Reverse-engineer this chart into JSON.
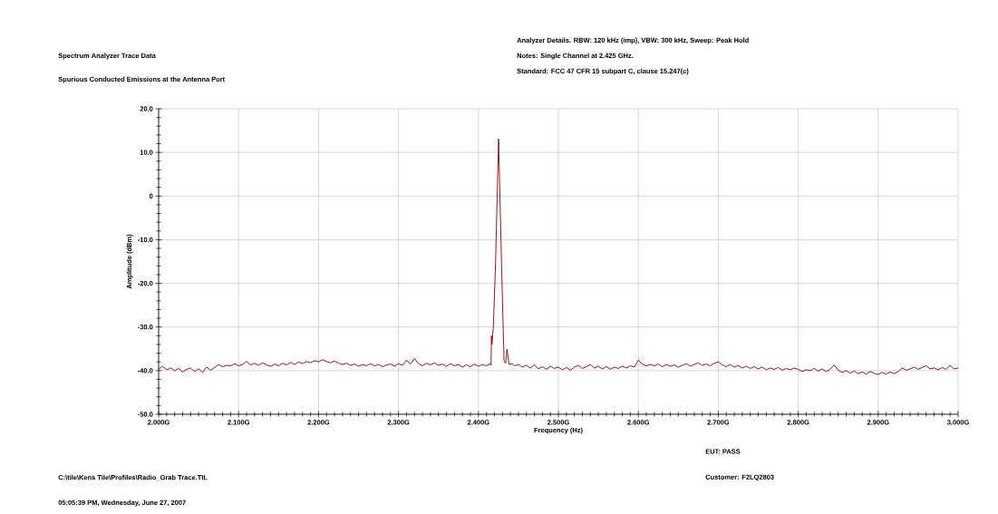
{
  "chart_data": {
    "type": "line",
    "subtitle": "Spectrum Analyzer Trace Data",
    "xlabel": "Frequency (Hz)",
    "ylabel": "Amplitude (dBm)",
    "annotations": [
      "Spurious Conducted Emissions at the Antenna Port",
      "Analyzer Details.  RBW: 120 kHz (imp), VBW: 300 kHz, Sweep: Peak Hold",
      "Notes:  Single Channel at 2.425 GHz.",
      "Standard: FCC 47 CFR 15 subpart C, clause 15.247(c)",
      "C:\\tile\\Kens Tile\\Profiles\\Radio_Grab Trace.TIL",
      "05:05:39 PM, Wednesday, June 27, 2007",
      "EUT: PASS",
      "Customer: F2LQ2803"
    ],
    "xlim": [
      2.0,
      3.0
    ],
    "xticks": [
      {
        "value": 2.0,
        "label": "2.000G"
      },
      {
        "value": 2.1,
        "label": "2.100G"
      },
      {
        "value": 2.2,
        "label": "2.200G"
      },
      {
        "value": 2.3,
        "label": "2.300G"
      },
      {
        "value": 2.4,
        "label": "2.400G"
      },
      {
        "value": 2.5,
        "label": "2.500G"
      },
      {
        "value": 2.6,
        "label": "2.600G"
      },
      {
        "value": 2.7,
        "label": "2.700G"
      },
      {
        "value": 2.8,
        "label": "2.800G"
      },
      {
        "value": 2.9,
        "label": "2.900G"
      },
      {
        "value": 3.0,
        "label": "3.000G"
      }
    ],
    "ylim": [
      -50,
      20
    ],
    "yticks": [
      {
        "value": -50,
        "label": "-50.0"
      },
      {
        "value": -40,
        "label": "-40.0"
      },
      {
        "value": -30,
        "label": "-30.0"
      },
      {
        "value": -20,
        "label": "-20.0"
      },
      {
        "value": -10,
        "label": "-10.0"
      },
      0,
      {
        "value": 10,
        "label": "10.0"
      },
      {
        "value": 20,
        "label": "20.0"
      }
    ],
    "grid": true,
    "marker": "none",
    "line_style": "solid",
    "series": [
      {
        "color": "#800000",
        "x": [
          2.0,
          2.005,
          2.01,
          2.015,
          2.02,
          2.025,
          2.03,
          2.035,
          2.04,
          2.045,
          2.05,
          2.055,
          2.06,
          2.065,
          2.07,
          2.075,
          2.08,
          2.085,
          2.09,
          2.095,
          2.1,
          2.105,
          2.11,
          2.115,
          2.12,
          2.125,
          2.13,
          2.135,
          2.14,
          2.145,
          2.15,
          2.155,
          2.16,
          2.165,
          2.17,
          2.175,
          2.18,
          2.185,
          2.19,
          2.195,
          2.2,
          2.205,
          2.21,
          2.215,
          2.22,
          2.225,
          2.23,
          2.235,
          2.24,
          2.245,
          2.25,
          2.255,
          2.26,
          2.265,
          2.27,
          2.275,
          2.28,
          2.285,
          2.29,
          2.295,
          2.3,
          2.305,
          2.31,
          2.315,
          2.32,
          2.325,
          2.33,
          2.335,
          2.34,
          2.345,
          2.35,
          2.355,
          2.36,
          2.365,
          2.37,
          2.375,
          2.38,
          2.385,
          2.39,
          2.395,
          2.4,
          2.405,
          2.41,
          2.415,
          2.4158,
          2.4163,
          2.4169,
          2.4187,
          2.4214,
          2.4252,
          2.4289,
          2.432,
          2.434,
          2.4357,
          2.4384,
          2.442,
          2.445,
          2.45,
          2.455,
          2.46,
          2.465,
          2.47,
          2.475,
          2.48,
          2.485,
          2.49,
          2.495,
          2.5,
          2.505,
          2.51,
          2.515,
          2.52,
          2.525,
          2.53,
          2.535,
          2.54,
          2.545,
          2.55,
          2.555,
          2.56,
          2.565,
          2.57,
          2.575,
          2.58,
          2.585,
          2.59,
          2.595,
          2.6,
          2.605,
          2.61,
          2.615,
          2.62,
          2.625,
          2.63,
          2.635,
          2.64,
          2.645,
          2.65,
          2.655,
          2.66,
          2.665,
          2.67,
          2.675,
          2.68,
          2.685,
          2.69,
          2.695,
          2.7,
          2.705,
          2.71,
          2.715,
          2.72,
          2.725,
          2.73,
          2.735,
          2.74,
          2.745,
          2.75,
          2.755,
          2.76,
          2.765,
          2.77,
          2.775,
          2.78,
          2.785,
          2.79,
          2.795,
          2.8,
          2.805,
          2.81,
          2.815,
          2.82,
          2.825,
          2.83,
          2.835,
          2.84,
          2.845,
          2.85,
          2.855,
          2.86,
          2.865,
          2.87,
          2.875,
          2.88,
          2.885,
          2.89,
          2.895,
          2.9,
          2.905,
          2.91,
          2.915,
          2.92,
          2.925,
          2.93,
          2.935,
          2.94,
          2.945,
          2.95,
          2.955,
          2.96,
          2.965,
          2.97,
          2.975,
          2.98,
          2.985,
          2.99,
          2.995,
          3.0
        ],
        "values": [
          -39.6,
          -39.0,
          -39.8,
          -39.4,
          -40.0,
          -39.5,
          -40.3,
          -39.7,
          -39.4,
          -40.2,
          -39.6,
          -40.4,
          -39.2,
          -39.9,
          -39.3,
          -38.6,
          -39.1,
          -38.8,
          -38.9,
          -38.4,
          -38.9,
          -38.6,
          -37.9,
          -38.7,
          -38.3,
          -38.8,
          -38.2,
          -38.7,
          -39.0,
          -38.5,
          -38.9,
          -38.3,
          -38.7,
          -38.1,
          -38.6,
          -38.0,
          -38.4,
          -37.9,
          -38.2,
          -37.7,
          -38.0,
          -37.5,
          -37.9,
          -38.2,
          -37.8,
          -38.3,
          -38.6,
          -38.3,
          -38.8,
          -38.5,
          -39.0,
          -38.6,
          -38.9,
          -38.4,
          -38.9,
          -38.6,
          -39.1,
          -38.7,
          -38.5,
          -39.0,
          -38.4,
          -38.8,
          -37.6,
          -38.5,
          -37.2,
          -38.4,
          -38.9,
          -38.3,
          -38.7,
          -38.2,
          -38.8,
          -38.5,
          -39.0,
          -38.4,
          -38.9,
          -38.6,
          -39.2,
          -38.7,
          -39.1,
          -38.5,
          -39.0,
          -38.6,
          -38.9,
          -38.4,
          -38.8,
          -32.0,
          -34.0,
          -29.9,
          -15.4,
          13.1,
          -15.4,
          -37.6,
          -38.3,
          -35.1,
          -38.6,
          -38.4,
          -38.9,
          -38.6,
          -39.2,
          -38.8,
          -39.4,
          -38.7,
          -39.6,
          -39.1,
          -39.7,
          -39.0,
          -39.5,
          -39.2,
          -39.8,
          -39.3,
          -39.9,
          -39.2,
          -38.8,
          -39.5,
          -39.1,
          -38.6,
          -39.4,
          -39.0,
          -39.6,
          -39.1,
          -39.7,
          -39.2,
          -39.5,
          -39.0,
          -39.4,
          -38.9,
          -39.2,
          -37.6,
          -38.5,
          -38.9,
          -38.6,
          -38.9,
          -38.5,
          -39.1,
          -38.6,
          -39.0,
          -38.7,
          -39.2,
          -38.8,
          -38.4,
          -39.0,
          -38.6,
          -38.2,
          -38.8,
          -38.5,
          -38.9,
          -38.3,
          -38.0,
          -38.7,
          -39.1,
          -38.6,
          -39.2,
          -38.8,
          -39.4,
          -39.0,
          -39.5,
          -39.1,
          -39.6,
          -39.2,
          -39.8,
          -39.4,
          -39.7,
          -39.3,
          -39.9,
          -39.5,
          -39.8,
          -39.4,
          -39.7,
          -40.2,
          -39.8,
          -40.0,
          -39.5,
          -40.1,
          -39.6,
          -40.2,
          -39.7,
          -38.7,
          -39.9,
          -40.4,
          -40.0,
          -40.6,
          -40.1,
          -40.7,
          -40.3,
          -40.8,
          -40.2,
          -40.6,
          -40.9,
          -40.4,
          -40.8,
          -40.3,
          -40.7,
          -40.2,
          -39.4,
          -39.9,
          -39.6,
          -39.2,
          -39.7,
          -39.3,
          -38.9,
          -39.6,
          -39.4,
          -39.8,
          -39.3,
          -39.7,
          -38.8,
          -39.6,
          -39.4
        ]
      }
    ]
  }
}
